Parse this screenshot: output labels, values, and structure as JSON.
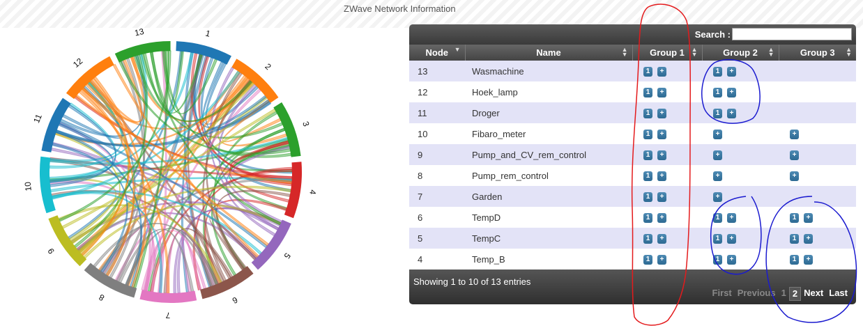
{
  "page_title": "ZWave Network Information",
  "chart": {
    "segments": [
      {
        "label": "1",
        "color": "#1f77b4"
      },
      {
        "label": "2",
        "color": "#ff7f0e"
      },
      {
        "label": "3",
        "color": "#2ca02c"
      },
      {
        "label": "4",
        "color": "#d62728"
      },
      {
        "label": "5",
        "color": "#9467bd"
      },
      {
        "label": "6",
        "color": "#8c564b"
      },
      {
        "label": "7",
        "color": "#e377c2"
      },
      {
        "label": "8",
        "color": "#7f7f7f"
      },
      {
        "label": "9",
        "color": "#bcbd22"
      },
      {
        "label": "10",
        "color": "#17becf"
      },
      {
        "label": "11",
        "color": "#1f77b4"
      },
      {
        "label": "12",
        "color": "#ff7f0e"
      },
      {
        "label": "13",
        "color": "#2ca02c"
      }
    ]
  },
  "table": {
    "search_label": "Search :",
    "search_value": "",
    "headers": {
      "node": "Node",
      "name": "Name",
      "group1": "Group 1",
      "group2": "Group 2",
      "group3": "Group 3"
    },
    "rows": [
      {
        "node": "13",
        "name": "Wasmachine",
        "g1": [
          "1",
          "+"
        ],
        "g2": [
          "1",
          "+"
        ],
        "g3": []
      },
      {
        "node": "12",
        "name": "Hoek_lamp",
        "g1": [
          "1",
          "+"
        ],
        "g2": [
          "1",
          "+"
        ],
        "g3": []
      },
      {
        "node": "11",
        "name": "Droger",
        "g1": [
          "1",
          "+"
        ],
        "g2": [
          "1",
          "+"
        ],
        "g3": []
      },
      {
        "node": "10",
        "name": "Fibaro_meter",
        "g1": [
          "1",
          "+"
        ],
        "g2": [
          "+"
        ],
        "g3": [
          "+"
        ]
      },
      {
        "node": "9",
        "name": "Pump_and_CV_rem_control",
        "g1": [
          "1",
          "+"
        ],
        "g2": [
          "+"
        ],
        "g3": [
          "+"
        ]
      },
      {
        "node": "8",
        "name": "Pump_rem_control",
        "g1": [
          "1",
          "+"
        ],
        "g2": [
          "+"
        ],
        "g3": [
          "+"
        ]
      },
      {
        "node": "7",
        "name": "Garden",
        "g1": [
          "1",
          "+"
        ],
        "g2": [
          "+"
        ],
        "g3": []
      },
      {
        "node": "6",
        "name": "TempD",
        "g1": [
          "1",
          "+"
        ],
        "g2": [
          "1",
          "+"
        ],
        "g3": [
          "1",
          "+"
        ]
      },
      {
        "node": "5",
        "name": "TempC",
        "g1": [
          "1",
          "+"
        ],
        "g2": [
          "1",
          "+"
        ],
        "g3": [
          "1",
          "+"
        ]
      },
      {
        "node": "4",
        "name": "Temp_B",
        "g1": [
          "1",
          "+"
        ],
        "g2": [
          "1",
          "+"
        ],
        "g3": [
          "1",
          "+"
        ]
      }
    ],
    "info": "Showing 1 to 10 of 13 entries",
    "pager": {
      "first": "First",
      "previous": "Previous",
      "page1": "1",
      "page2": "2",
      "next": "Next",
      "last": "Last"
    }
  },
  "annotations": {
    "red_color": "#e41a1c",
    "blue_color": "#1a1acf"
  }
}
